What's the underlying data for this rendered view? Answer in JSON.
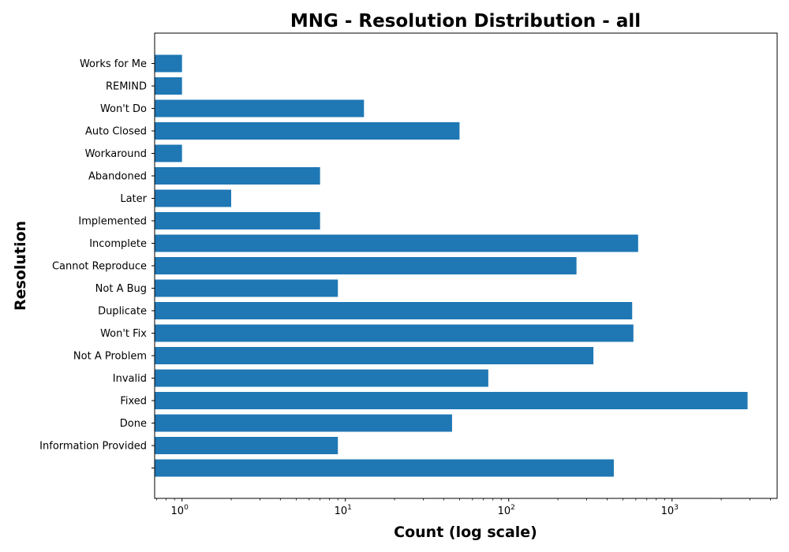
{
  "chart_data": {
    "type": "bar",
    "orientation": "horizontal",
    "title": "MNG - Resolution Distribution - all",
    "xlabel": "Count (log scale)",
    "ylabel": "Resolution",
    "x_scale": "log",
    "xlim": [
      0.68,
      4400
    ],
    "x_ticks": [
      {
        "base": "10",
        "exp": "0",
        "value": 1
      },
      {
        "base": "10",
        "exp": "1",
        "value": 10
      },
      {
        "base": "10",
        "exp": "2",
        "value": 100
      },
      {
        "base": "10",
        "exp": "3",
        "value": 1000
      }
    ],
    "categories": [
      "Works for Me",
      "REMIND",
      "Won't Do",
      "Auto Closed",
      "Workaround",
      "Abandoned",
      "Later",
      "Implemented",
      "Incomplete",
      "Cannot Reproduce",
      "Not A Bug",
      "Duplicate",
      "Won't Fix",
      "Not A Problem",
      "Invalid",
      "Fixed",
      "Done",
      "Information Provided",
      ""
    ],
    "values": [
      1,
      1,
      13,
      50,
      1,
      7,
      2,
      7,
      620,
      260,
      9,
      570,
      580,
      330,
      75,
      2900,
      45,
      9,
      440
    ],
    "bar_color": "#1f77b4",
    "grid": false,
    "legend": "none"
  }
}
